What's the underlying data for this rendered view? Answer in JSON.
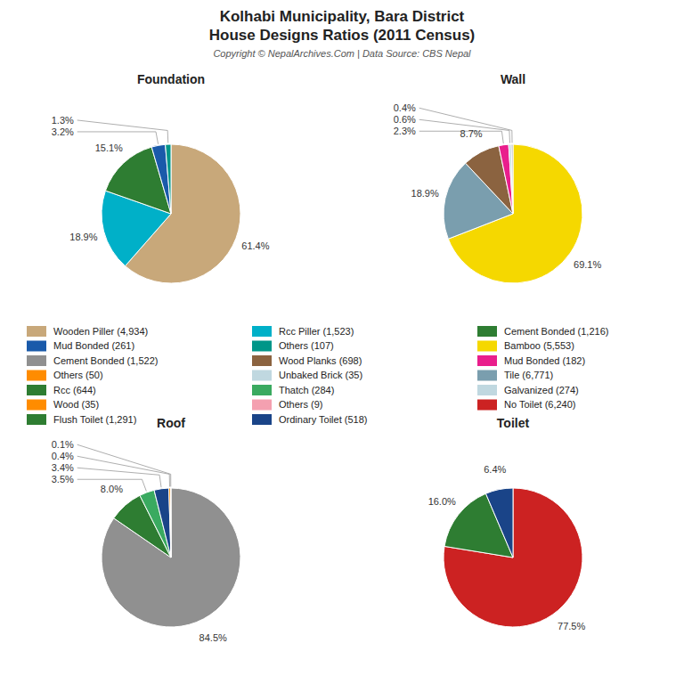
{
  "title": "Kolhabi Municipality, Bara District\nHouse Designs Ratios (2011 Census)",
  "subtitle": "Copyright © NepalArchives.Com | Data Source: CBS Nepal",
  "series": [
    {
      "name": "Wooden Piller (4,934)",
      "color": "#c8a87a"
    },
    {
      "name": "Mud Bonded (261)",
      "color": "#1a5aaa"
    },
    {
      "name": "Cement Bonded (1,522)",
      "color": "#909090"
    },
    {
      "name": "Others (50)",
      "color": "#ff8c00"
    },
    {
      "name": "Rcc (644)",
      "color": "#2e7d32"
    },
    {
      "name": "Wood (35)",
      "color": "#ff8c00"
    },
    {
      "name": "Flush Toilet (1,291)",
      "color": "#2e7d32"
    },
    {
      "name": "Rcc Piller (1,523)",
      "color": "#00b0c8"
    },
    {
      "name": "Others (107)",
      "color": "#009688"
    },
    {
      "name": "Wood Planks (698)",
      "color": "#8b6340"
    },
    {
      "name": "Unbaked Brick (35)",
      "color": "#c0d8e0"
    },
    {
      "name": "Thatch (284)",
      "color": "#3aaa60"
    },
    {
      "name": "Others (9)",
      "color": "#f4a0b0"
    },
    {
      "name": "Ordinary Toilet (518)",
      "color": "#1a4488"
    },
    {
      "name": "Cement Bonded (1,216)",
      "color": "#2e7d32"
    },
    {
      "name": "Bamboo (5,553)",
      "color": "#f5d800"
    },
    {
      "name": "Mud Bonded (182)",
      "color": "#e91e8c"
    },
    {
      "name": "Tile (6,771)",
      "color": "#7a9eae"
    },
    {
      "name": "Galvanized (274)",
      "color": "#c0d8e0"
    },
    {
      "name": "No Toilet (6,240)",
      "color": "#cc2222"
    }
  ],
  "chart_data": [
    {
      "type": "pie",
      "title": "Foundation",
      "values": [
        61.4,
        18.9,
        15.1,
        3.2,
        1.3
      ],
      "value_labels": [
        "61.4%",
        "18.9%",
        "15.1%",
        "3.2%",
        "1.3%"
      ],
      "colors": [
        "#c8a87a",
        "#00b0c8",
        "#2e7d32",
        "#1a5aaa",
        "#009688"
      ],
      "data_labels": true
    },
    {
      "type": "pie",
      "title": "Wall",
      "values": [
        69.1,
        18.9,
        8.7,
        2.3,
        0.6,
        0.4
      ],
      "value_labels": [
        "69.1%",
        "18.9%",
        "8.7%",
        "2.3%",
        "0.6%",
        "0.4%"
      ],
      "colors": [
        "#f5d800",
        "#7a9eae",
        "#8b6340",
        "#e91e8c",
        "#c0d8e0",
        "#b0b0b0"
      ],
      "data_labels": true
    },
    {
      "type": "pie",
      "title": "Roof",
      "values": [
        84.5,
        8.0,
        3.5,
        3.4,
        0.4,
        0.1
      ],
      "value_labels": [
        "84.5%",
        "8.0%",
        "3.5%",
        "3.4%",
        "0.4%",
        "0.1%"
      ],
      "colors": [
        "#909090",
        "#2e7d32",
        "#3aaa60",
        "#1a4488",
        "#ff8c00",
        "#f4a0b0"
      ],
      "data_labels": true
    },
    {
      "type": "pie",
      "title": "Toilet",
      "values": [
        77.5,
        16.0,
        6.4
      ],
      "value_labels": [
        "77.5%",
        "16.0%",
        "6.4%"
      ],
      "colors": [
        "#cc2222",
        "#2e7d32",
        "#1a4488"
      ],
      "data_labels": true
    }
  ]
}
